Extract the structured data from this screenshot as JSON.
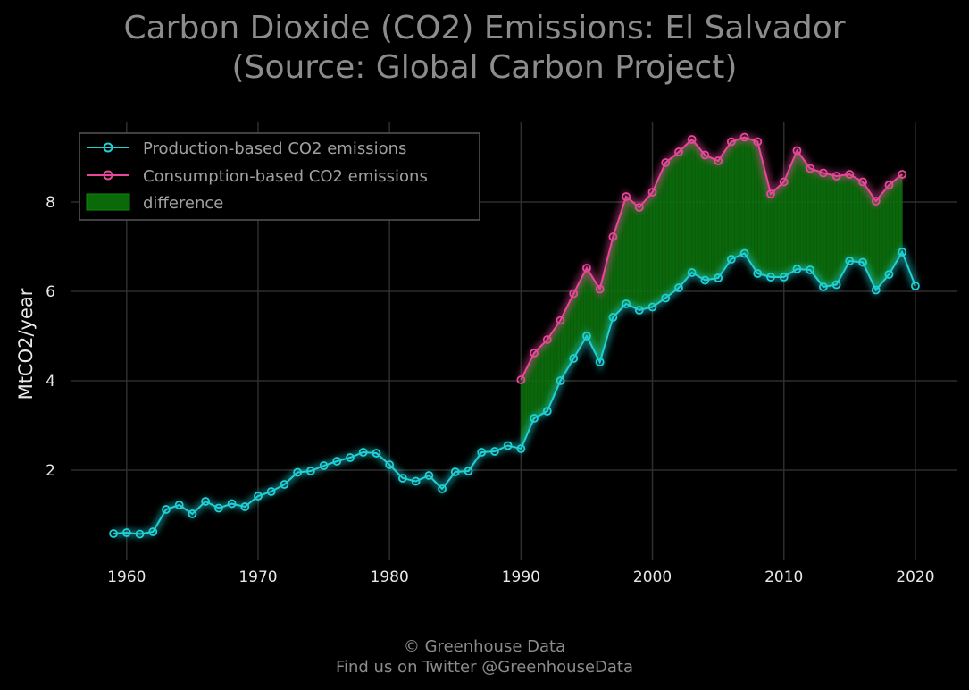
{
  "header": {
    "title_line1": "Carbon Dioxide (CO2) Emissions: El Salvador",
    "title_line2": "(Source: Global Carbon Project)"
  },
  "footer": {
    "copyright": "© Greenhouse Data",
    "twitter": "Find us on Twitter @GreenhouseData"
  },
  "colors": {
    "background": "#000000",
    "production": "#1fd1d6",
    "consumption": "#e8489a",
    "difference": "#0a7a0a",
    "grid": "#2e2e2e",
    "text": "#e8e8e8",
    "title": "#8c8c8c"
  },
  "chart_data": {
    "type": "line",
    "title": "Carbon Dioxide (CO2) Emissions: El Salvador (Source: Global Carbon Project)",
    "xlabel": "",
    "ylabel": "MtCO2/year",
    "xlim": [
      1955.8,
      2023.2
    ],
    "ylim": [
      0,
      9.8
    ],
    "x_ticks": [
      1960,
      1970,
      1980,
      1990,
      2000,
      2010,
      2020
    ],
    "y_ticks": [
      2,
      4,
      6,
      8
    ],
    "grid": true,
    "legend_position": "top-left",
    "series": [
      {
        "name": "Production-based CO2 emissions",
        "x": [
          1959,
          1960,
          1961,
          1962,
          1963,
          1964,
          1965,
          1966,
          1967,
          1968,
          1969,
          1970,
          1971,
          1972,
          1973,
          1974,
          1975,
          1976,
          1977,
          1978,
          1979,
          1980,
          1981,
          1982,
          1983,
          1984,
          1985,
          1986,
          1987,
          1988,
          1989,
          1990,
          1991,
          1992,
          1993,
          1994,
          1995,
          1996,
          1997,
          1998,
          1999,
          2000,
          2001,
          2002,
          2003,
          2004,
          2005,
          2006,
          2007,
          2008,
          2009,
          2010,
          2011,
          2012,
          2013,
          2014,
          2015,
          2016,
          2017,
          2018,
          2019,
          2020
        ],
        "values": [
          0.58,
          0.6,
          0.57,
          0.62,
          1.12,
          1.22,
          1.02,
          1.3,
          1.15,
          1.25,
          1.18,
          1.42,
          1.52,
          1.68,
          1.95,
          1.98,
          2.1,
          2.2,
          2.28,
          2.4,
          2.38,
          2.12,
          1.82,
          1.75,
          1.88,
          1.58,
          1.96,
          1.98,
          2.4,
          2.42,
          2.55,
          2.48,
          3.16,
          3.32,
          4.0,
          4.5,
          5.0,
          4.42,
          5.42,
          5.72,
          5.58,
          5.65,
          5.85,
          6.08,
          6.42,
          6.25,
          6.3,
          6.72,
          6.85,
          6.4,
          6.32,
          6.32,
          6.5,
          6.48,
          6.1,
          6.15,
          6.68,
          6.65,
          6.03,
          6.38,
          6.88,
          6.12
        ]
      },
      {
        "name": "Consumption-based CO2 emissions",
        "x": [
          1990,
          1991,
          1992,
          1993,
          1994,
          1995,
          1996,
          1997,
          1998,
          1999,
          2000,
          2001,
          2002,
          2003,
          2004,
          2005,
          2006,
          2007,
          2008,
          2009,
          2010,
          2011,
          2012,
          2013,
          2014,
          2015,
          2016,
          2017,
          2018,
          2019
        ],
        "values": [
          4.02,
          4.62,
          4.92,
          5.35,
          5.95,
          6.52,
          6.05,
          7.22,
          8.12,
          7.88,
          8.22,
          8.88,
          9.12,
          9.4,
          9.05,
          8.92,
          9.35,
          9.45,
          9.35,
          8.18,
          8.45,
          9.15,
          8.75,
          8.65,
          8.58,
          8.62,
          8.45,
          8.02,
          8.38,
          8.62
        ]
      }
    ],
    "legend": [
      "Production-based CO2 emissions",
      "Consumption-based CO2 emissions",
      "difference"
    ]
  }
}
